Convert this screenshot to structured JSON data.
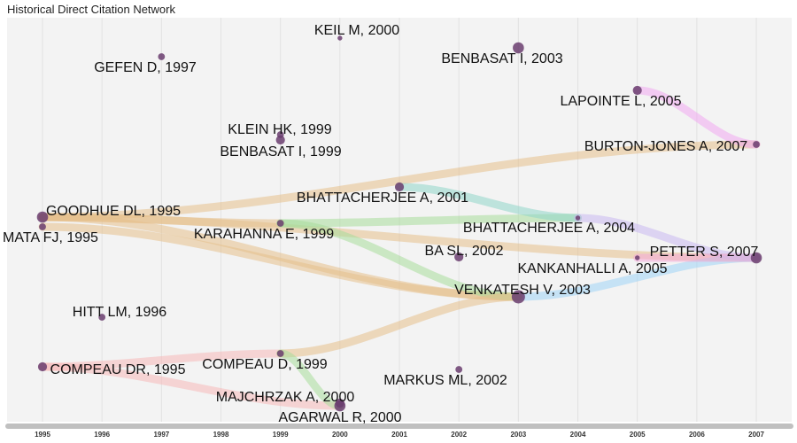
{
  "chart_data": {
    "type": "network",
    "title": "Historical Direct Citation Network",
    "x_ticks": [
      "1995",
      "1996",
      "1997",
      "1998",
      "1999",
      "2000",
      "2001",
      "2002",
      "2003",
      "2004",
      "2005",
      "2006",
      "2007"
    ],
    "xlim": [
      1995,
      2007
    ],
    "nodes": [
      {
        "id": "keil2000",
        "label": "KEIL M, 2000",
        "year": 2000,
        "size": 1
      },
      {
        "id": "gefen1997",
        "label": "GEFEN D, 1997",
        "year": 1997,
        "size": 2
      },
      {
        "id": "benbasat2003",
        "label": "BENBASAT I, 2003",
        "year": 2003,
        "size": 4
      },
      {
        "id": "lapointe2005",
        "label": "LAPOINTE L, 2005",
        "year": 2005,
        "size": 3
      },
      {
        "id": "klein1999",
        "label": "KLEIN HK, 1999",
        "year": 1999,
        "size": 2
      },
      {
        "id": "benbasat1999",
        "label": "BENBASAT I, 1999",
        "year": 1999,
        "size": 3
      },
      {
        "id": "burtonjones2007",
        "label": "BURTON-JONES A, 2007",
        "year": 2007,
        "size": 2
      },
      {
        "id": "bhatt2001",
        "label": "BHATTACHERJEE A, 2001",
        "year": 2001,
        "size": 3
      },
      {
        "id": "goodhue1995",
        "label": "GOODHUE DL, 1995",
        "year": 1995,
        "size": 4
      },
      {
        "id": "mata1995",
        "label": "MATA FJ, 1995",
        "year": 1995,
        "size": 2
      },
      {
        "id": "karahanna1999",
        "label": "KARAHANNA E, 1999",
        "year": 1999,
        "size": 2
      },
      {
        "id": "bhatt2004",
        "label": "BHATTACHERJEE A, 2004",
        "year": 2004,
        "size": 1
      },
      {
        "id": "basl2002",
        "label": "BA SL, 2002",
        "year": 2002,
        "size": 3
      },
      {
        "id": "petter2007",
        "label": "PETTER S, 2007",
        "year": 2007,
        "size": 4
      },
      {
        "id": "kankanhalli2005",
        "label": "KANKANHALLI A, 2005",
        "year": 2005,
        "size": 1
      },
      {
        "id": "venkatesh2003",
        "label": "VENKATESH V, 2003",
        "year": 2003,
        "size": 5
      },
      {
        "id": "hitt1996",
        "label": "HITT LM, 1996",
        "year": 1996,
        "size": 2
      },
      {
        "id": "compeaudr1995",
        "label": "COMPEAU DR, 1995",
        "year": 1995,
        "size": 3
      },
      {
        "id": "compeaud1999",
        "label": "COMPEAU D, 1999",
        "year": 1999,
        "size": 2
      },
      {
        "id": "markus2002",
        "label": "MARKUS ML, 2002",
        "year": 2002,
        "size": 2
      },
      {
        "id": "majchrzak2000",
        "label": "MAJCHRZAK A, 2000",
        "year": 2000,
        "size": 3
      },
      {
        "id": "agarwal2000",
        "label": "AGARWAL R, 2000",
        "year": 2000,
        "size": 4
      }
    ],
    "edges": [
      {
        "from": "goodhue1995",
        "to": "burtonjones2007",
        "color": "#e6c08a"
      },
      {
        "from": "goodhue1995",
        "to": "petter2007",
        "color": "#e6c08a"
      },
      {
        "from": "goodhue1995",
        "to": "venkatesh2003",
        "color": "#e6c08a"
      },
      {
        "from": "goodhue1995",
        "to": "karahanna1999",
        "color": "#e6c08a"
      },
      {
        "from": "mata1995",
        "to": "venkatesh2003",
        "color": "#e6c08a"
      },
      {
        "from": "karahanna1999",
        "to": "bhatt2004",
        "color": "#a8dc9a"
      },
      {
        "from": "karahanna1999",
        "to": "venkatesh2003",
        "color": "#a8dc9a"
      },
      {
        "from": "bhatt2001",
        "to": "bhatt2004",
        "color": "#8fd6c8"
      },
      {
        "from": "bhatt2004",
        "to": "petter2007",
        "color": "#c9b8f0"
      },
      {
        "from": "lapointe2005",
        "to": "burtonjones2007",
        "color": "#f0a8f0"
      },
      {
        "from": "venkatesh2003",
        "to": "petter2007",
        "color": "#9fd4f5"
      },
      {
        "from": "kankanhalli2005",
        "to": "petter2007",
        "color": "#f5a8d8"
      },
      {
        "from": "compeaudr1995",
        "to": "agarwal2000",
        "color": "#f5b8b8"
      },
      {
        "from": "compeaudr1995",
        "to": "compeaud1999",
        "color": "#f5b8b8"
      },
      {
        "from": "compeaud1999",
        "to": "venkatesh2003",
        "color": "#e6c08a"
      },
      {
        "from": "compeaud1999",
        "to": "agarwal2000",
        "color": "#a8dc9a"
      }
    ]
  },
  "colors": {
    "panel_bg": "#f3f3f3",
    "grid": "#e2e2e2",
    "node_fill": "#6a3d6f",
    "axis_bar": "#c0c0c0"
  }
}
